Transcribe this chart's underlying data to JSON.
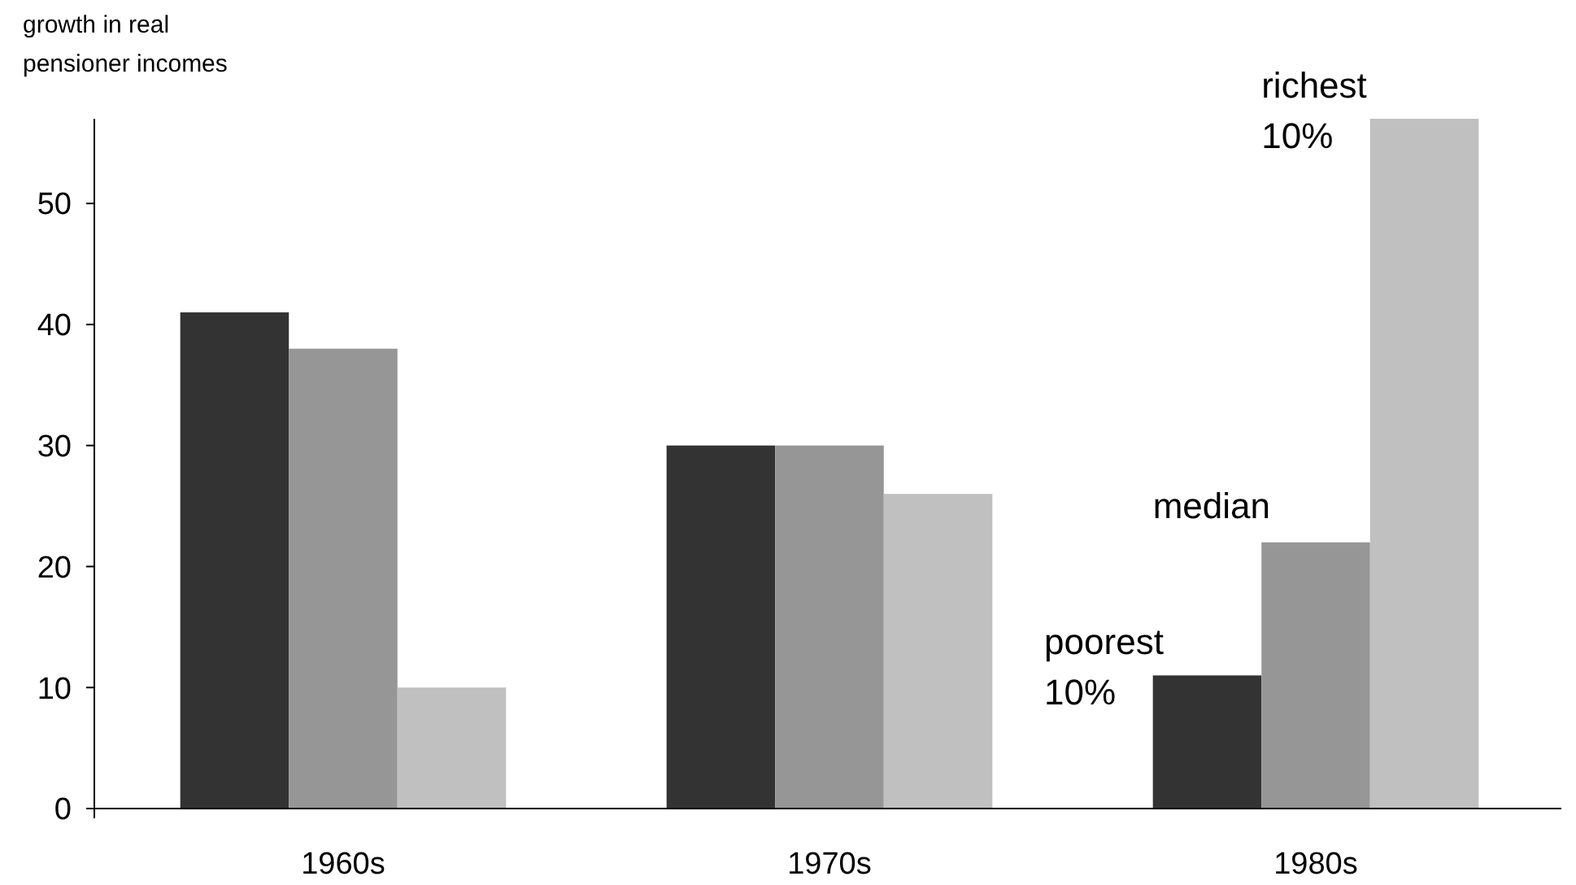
{
  "chart_data": {
    "type": "bar",
    "ylabel": "growth in real pensioner incomes",
    "categories": [
      "1960s",
      "1970s",
      "1980s"
    ],
    "ylim": [
      0,
      57
    ],
    "yticks": [
      0,
      10,
      20,
      30,
      40,
      50
    ],
    "series": [
      {
        "name": "poorest 10%",
        "color": "#333333",
        "values": [
          41,
          30,
          11
        ]
      },
      {
        "name": "median",
        "color": "#969696",
        "values": [
          38,
          30,
          22
        ]
      },
      {
        "name": "richest 10%",
        "color": "#c0c0c0",
        "values": [
          10,
          26,
          57
        ]
      }
    ]
  }
}
